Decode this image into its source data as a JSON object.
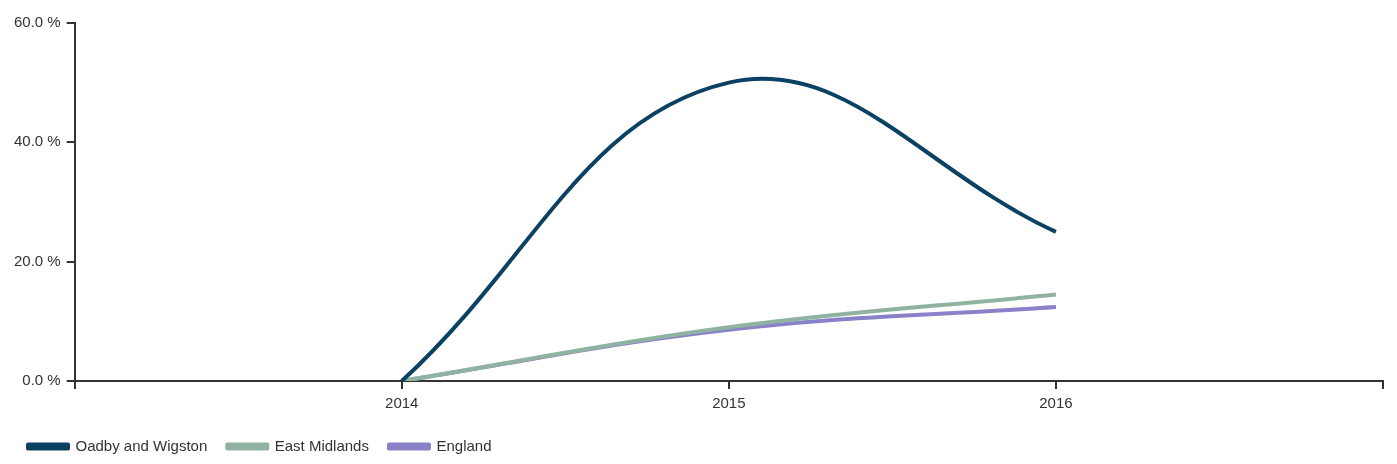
{
  "chart_data": {
    "type": "line",
    "x": [
      2014,
      2015,
      2016
    ],
    "series": [
      {
        "name": "Oadby and Wigston",
        "color": "#0b4163",
        "values": [
          0,
          50,
          25
        ]
      },
      {
        "name": "East Midlands",
        "color": "#8fb3a0",
        "values": [
          0,
          9,
          14.5
        ]
      },
      {
        "name": "England",
        "color": "#8a82c8",
        "values": [
          0,
          8.6,
          12.4
        ]
      }
    ],
    "xlim": [
      2013,
      2017
    ],
    "xticks": [
      {
        "value": 2013,
        "label": null
      },
      2014,
      2015,
      2016,
      {
        "value": 2017,
        "label": null
      }
    ],
    "ylim": [
      0,
      60
    ],
    "yticks": [
      {
        "value": 0,
        "label": "0.0 %"
      },
      {
        "value": 20,
        "label": "20.0 %"
      },
      {
        "value": 40,
        "label": "40.0 %"
      },
      {
        "value": 60,
        "label": "60.0 %"
      }
    ],
    "grid": false,
    "legend": "bottom left",
    "marker": "none",
    "line_style": "solid"
  }
}
